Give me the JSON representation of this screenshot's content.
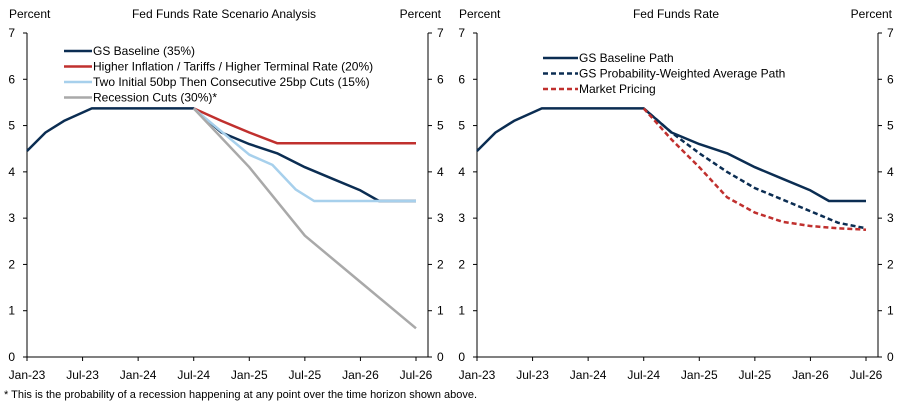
{
  "chart_data": [
    {
      "type": "line",
      "title": "Fed Funds Rate Scenario Analysis",
      "ylabel_left": "Percent",
      "ylabel_right": "Percent",
      "ylim": [
        0,
        7
      ],
      "yticks": [
        "0",
        "1",
        "2",
        "3",
        "4",
        "5",
        "6",
        "7"
      ],
      "xlim": [
        0,
        42
      ],
      "x_unit": "months since Jan-23",
      "xticks": [
        {
          "label": "Jan-23",
          "x": 0
        },
        {
          "label": "Jul-23",
          "x": 6
        },
        {
          "label": "Jan-24",
          "x": 12
        },
        {
          "label": "Jul-24",
          "x": 18
        },
        {
          "label": "Jan-25",
          "x": 24
        },
        {
          "label": "Jul-25",
          "x": 30
        },
        {
          "label": "Jan-26",
          "x": 36
        },
        {
          "label": "Jul-26",
          "x": 42
        }
      ],
      "legend_position": "top-left",
      "series": [
        {
          "name": "GS Baseline (35%)",
          "color": "#0b2d52",
          "dash": "solid",
          "points": [
            [
              0,
              4.45
            ],
            [
              2,
              4.85
            ],
            [
              4,
              5.1
            ],
            [
              7,
              5.37
            ],
            [
              18,
              5.37
            ],
            [
              21,
              4.85
            ],
            [
              24,
              4.6
            ],
            [
              27,
              4.4
            ],
            [
              30,
              4.1
            ],
            [
              33,
              3.85
            ],
            [
              36,
              3.6
            ],
            [
              38,
              3.37
            ],
            [
              42,
              3.37
            ]
          ]
        },
        {
          "name": "Higher Inflation / Tariffs / Higher Terminal Rate (20%)",
          "color": "#c0302e",
          "dash": "solid",
          "points": [
            [
              18,
              5.37
            ],
            [
              21,
              5.1
            ],
            [
              24,
              4.85
            ],
            [
              27,
              4.62
            ],
            [
              42,
              4.62
            ]
          ]
        },
        {
          "name": "Two Initial 50bp Then Consecutive 25bp Cuts (15%)",
          "color": "#a7d0ec",
          "dash": "solid",
          "points": [
            [
              18,
              5.37
            ],
            [
              21,
              4.87
            ],
            [
              24,
              4.37
            ],
            [
              26.5,
              4.15
            ],
            [
              29,
              3.62
            ],
            [
              31,
              3.37
            ],
            [
              42,
              3.37
            ]
          ]
        },
        {
          "name": "Recession Cuts (30%)*",
          "color": "#a9a9a9",
          "dash": "solid",
          "points": [
            [
              18,
              5.37
            ],
            [
              24,
              4.1
            ],
            [
              30,
              2.62
            ],
            [
              36,
              1.62
            ],
            [
              42,
              0.62
            ]
          ]
        }
      ]
    },
    {
      "type": "line",
      "title": "Fed Funds Rate",
      "ylabel_left": "Percent",
      "ylabel_right": "Percent",
      "ylim": [
        0,
        7
      ],
      "yticks": [
        "0",
        "1",
        "2",
        "3",
        "4",
        "5",
        "6",
        "7"
      ],
      "xlim": [
        0,
        42
      ],
      "x_unit": "months since Jan-23",
      "xticks": [
        {
          "label": "Jan-23",
          "x": 0
        },
        {
          "label": "Jul-23",
          "x": 6
        },
        {
          "label": "Jan-24",
          "x": 12
        },
        {
          "label": "Jul-24",
          "x": 18
        },
        {
          "label": "Jan-25",
          "x": 24
        },
        {
          "label": "Jul-25",
          "x": 30
        },
        {
          "label": "Jan-26",
          "x": 36
        },
        {
          "label": "Jul-26",
          "x": 42
        }
      ],
      "legend_position": "top-left",
      "series": [
        {
          "name": "GS Baseline Path",
          "color": "#0b2d52",
          "dash": "solid",
          "points": [
            [
              0,
              4.45
            ],
            [
              2,
              4.85
            ],
            [
              4,
              5.1
            ],
            [
              7,
              5.37
            ],
            [
              18,
              5.37
            ],
            [
              21,
              4.85
            ],
            [
              24,
              4.6
            ],
            [
              27,
              4.4
            ],
            [
              30,
              4.1
            ],
            [
              33,
              3.85
            ],
            [
              36,
              3.6
            ],
            [
              38,
              3.37
            ],
            [
              42,
              3.37
            ]
          ]
        },
        {
          "name": "GS Probability-Weighted Average Path",
          "color": "#0b2d52",
          "dash": "dashed",
          "points": [
            [
              18,
              5.37
            ],
            [
              21,
              4.85
            ],
            [
              24,
              4.4
            ],
            [
              27,
              4.0
            ],
            [
              30,
              3.65
            ],
            [
              33,
              3.4
            ],
            [
              36,
              3.15
            ],
            [
              39,
              2.9
            ],
            [
              42,
              2.78
            ]
          ]
        },
        {
          "name": "Market Pricing",
          "color": "#c0302e",
          "dash": "dashed",
          "points": [
            [
              18,
              5.37
            ],
            [
              21,
              4.7
            ],
            [
              24,
              4.1
            ],
            [
              27,
              3.45
            ],
            [
              30,
              3.12
            ],
            [
              33,
              2.92
            ],
            [
              36,
              2.83
            ],
            [
              39,
              2.78
            ],
            [
              42,
              2.75
            ]
          ]
        }
      ]
    }
  ],
  "footnote": "* This is the probability of a recession happening at any point over the time horizon shown above."
}
